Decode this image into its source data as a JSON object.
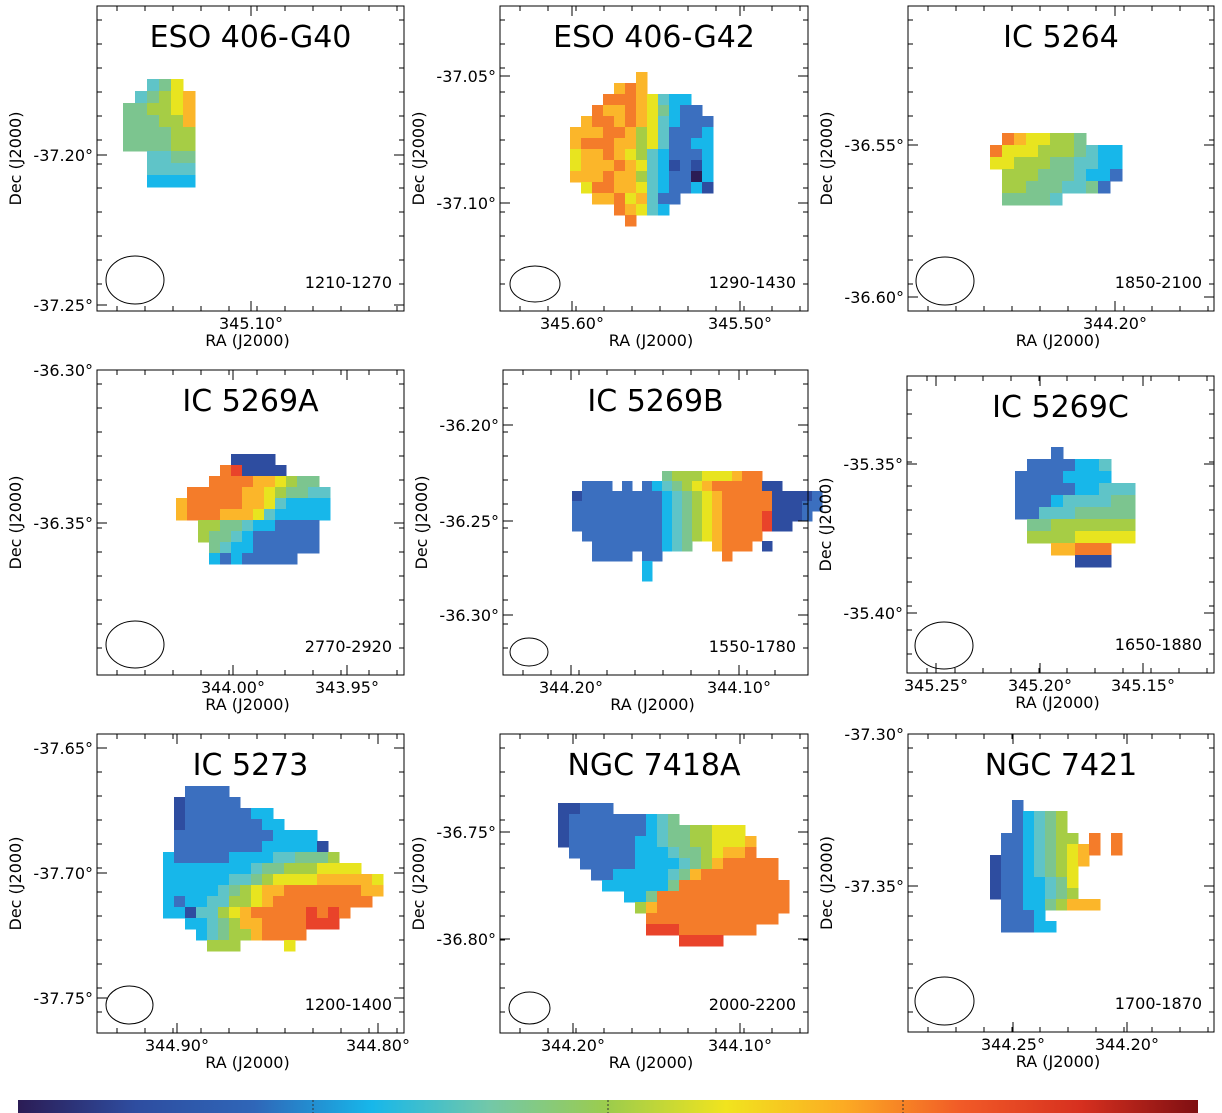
{
  "figure": {
    "colorbar": {
      "stops": [
        "#2b1c55",
        "#2e4da0",
        "#2f66b8",
        "#17b7ea",
        "#73c8a8",
        "#9ccc4c",
        "#f1e41e",
        "#fcab23",
        "#f15a27",
        "#d7301f",
        "#7f0f12"
      ]
    },
    "palette": [
      "#2b1c55",
      "#2e4da0",
      "#3b6fbf",
      "#17b7ea",
      "#5fc4c8",
      "#7cc58f",
      "#a6cd45",
      "#e8e41f",
      "#fbb62a",
      "#f47c2a",
      "#e9432a",
      "#c9202a",
      "#7f0f12"
    ]
  },
  "chart_data": [
    {
      "type": "heatmap",
      "title": "ESO 406-G40",
      "xlabel": "RA (J2000)",
      "ylabel": "Dec (J2000)",
      "velocity_range": "1210-1270",
      "xticks": [
        "345.10°"
      ],
      "yticks": [
        "-37.20°",
        "-37.25°"
      ],
      "grid": false,
      "velocity_map": [
        "..457.",
        ".45678",
        "556678",
        "555668",
        "555566",
        "555566",
        "..4455",
        "..4444",
        "..3333"
      ]
    },
    {
      "type": "heatmap",
      "title": "ESO 406-G42",
      "xlabel": "RA (J2000)",
      "ylabel": "Dec (J2000)",
      "velocity_range": "1290-1430",
      "xticks": [
        "345.60°",
        "345.50°"
      ],
      "yticks": [
        "-37.05°",
        "-37.10°"
      ],
      "grid": false,
      "velocity_map": [
        "......8........",
        "....898........",
        "...99987433....",
        "..9889875322...",
        ".899898743222..",
        "8889986742223..",
        "8999886742233..",
        "7889876432223..",
        "7888987431213..",
        "8889886432203..",
        ".799887432231..",
        "..88978422.....",
        "....98743......",
        ".....9.........."
      ]
    },
    {
      "type": "heatmap",
      "title": "IC 5264",
      "xlabel": "RA (J2000)",
      "ylabel": "Dec (J2000)",
      "velocity_range": "1850-2100",
      "xticks": [
        "344.20°"
      ],
      "yticks": [
        "-36.55°",
        "-36.60°"
      ],
      "grid": false,
      "velocity_map": [
        ".9877665...",
        "97776665433",
        "77666554433",
        ".6665554332",
        ".665554452.",
        ".55554......"
      ]
    },
    {
      "type": "heatmap",
      "title": "IC 5269A",
      "xlabel": "RA (J2000)",
      "ylabel": "Dec (J2000)",
      "velocity_range": "2770-2920",
      "xticks": [
        "344.00°",
        "343.95°"
      ],
      "yticks": [
        "-36.30°",
        "-36.35°"
      ],
      "grid": false,
      "velocity_map": [
        "......1111......",
        ".....9101111....",
        "....9999887655..",
        "..9999988765544.",
        ".89999988743333.",
        ".89998887433333.",
        "...66554332222..",
        "...65543222222..",
        "....5433222222..",
        "....32322222...."
      ]
    },
    {
      "type": "heatmap",
      "title": "IC 5269B",
      "xlabel": "RA (J2000)",
      "ylabel": "Dec (J2000)",
      "velocity_range": "1550-1780",
      "xticks": [
        "344.20°",
        "344.10°"
      ],
      "yticks": [
        "-36.20°",
        "-36.25°",
        "-36.30°"
      ],
      "grid": false,
      "velocity_map": [
        "..........5666777899......",
        "..222.2.23456789999911....",
        ".1222222223456789999911112",
        ".2222222223456789999911122",
        ".2222222223456789999101112",
        ".22222222234567899991011..",
        "..222222223456789999......",
        "...2222222345..8999.1.....",
        "...2222.22......9.........",
        "........3..................",
        "........3.................."
      ]
    },
    {
      "type": "heatmap",
      "title": "IC 5269C",
      "xlabel": "RA (J2000)",
      "ylabel": "Dec (J2000)",
      "velocity_range": "1650-1880",
      "xticks": [
        "345.25°",
        "345.20°",
        "345.15°"
      ],
      "yticks": [
        "-35.35°",
        "-35.40°"
      ],
      "grid": false,
      "velocity_map": [
        "....2......",
        "..2222334..",
        ".22223333..",
        ".2222233444",
        ".2223444455",
        ".2244455555",
        "..556666666",
        "..666677777",
        "....88999..",
        "......111.."
      ]
    },
    {
      "type": "heatmap",
      "title": "IC 5273",
      "xlabel": "RA (J2000)",
      "ylabel": "Dec (J2000)",
      "velocity_range": "1200-1400",
      "xticks": [
        "344.90°",
        "344.80°"
      ],
      "yticks": [
        "-37.65°",
        "-37.70°",
        "-37.75°"
      ],
      "grid": false,
      "velocity_map": [
        "..2222..............",
        ".122222.............",
        ".122222233..........",
        ".1222222233.........",
        ".2222222223333......",
        ".22222222333331.....",
        "3222223333445556....",
        "333333334556667777..",
        "33333344567777888887",
        "33333456788999999988",
        "3233446678999999999.",
        "3314467899999109109..",
        "..33456889999101010..",
        "...3456689999.........",
        "....666....7.........."
      ]
    },
    {
      "type": "heatmap",
      "title": "NGC 7418A",
      "xlabel": "RA (J2000)",
      "ylabel": "Dec (J2000)",
      "velocity_range": "2000-2200",
      "xticks": [
        "344.20°",
        "344.10°"
      ],
      "yticks": [
        "-36.75°",
        "-36.80°"
      ],
      "grid": false,
      "velocity_map": [
        "11222...............",
        "12222222345.........",
        "12222222345566777...",
        "122222233455667778..",
        ".22222233345567889..",
        "..222223333456899999",
        "...22333334589999999",
        "....33333359999999999",
        "......335999999999999",
        ".......68999999999999",
        "........999999999999.",
        "........1010109999999.",
        "...........10101010......"
      ]
    },
    {
      "type": "heatmap",
      "title": "NGC 7421",
      "xlabel": "RA (J2000)",
      "ylabel": "Dec (J2000)",
      "velocity_range": "1700-1870",
      "xticks": [
        "344.25°",
        "344.20°"
      ],
      "yticks": [
        "-37.30°",
        "-37.35°"
      ],
      "grid": false,
      "velocity_map": [
        "..2.........",
        "..23456.....",
        "..23456.....",
        ".2234566.9.9",
        ".223456789.9",
        "122345678...",
        "12234567....",
        "12233457....",
        "12233456....",
        ".223356888..",
        ".2223........",
        ".22233......."
      ]
    }
  ]
}
